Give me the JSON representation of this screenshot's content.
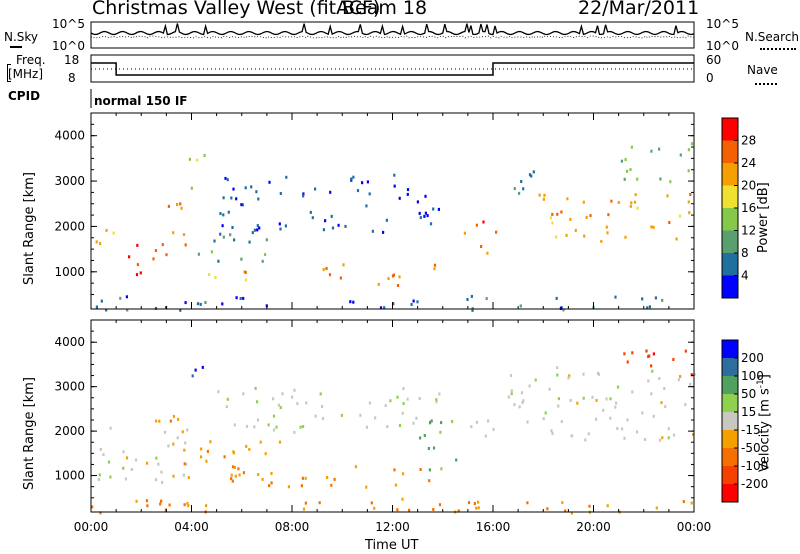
{
  "header": {
    "station": "Christmas Valley West (fitACF)",
    "beam": "Beam 18",
    "date": "22/Mar/2011"
  },
  "noise_panel": {
    "left_label": "N.Sky",
    "right_label": "N.Search",
    "left_ticks": [
      "10^5",
      "10^0"
    ],
    "right_ticks": [
      "10^5",
      "10^0"
    ]
  },
  "freq_panel": {
    "left_label_line1": "Freq.",
    "left_label_line2": "[MHz]",
    "right_label": "Nave",
    "left_ticks": [
      "18",
      "8"
    ],
    "right_ticks": [
      "60",
      "0"
    ]
  },
  "cpid_panel": {
    "label": "CPID",
    "mode": "normal 150 IF"
  },
  "colors": {
    "axis": "#000000",
    "ground_scatter": "#c0c0b8"
  },
  "chart_data": [
    {
      "type": "heatmap",
      "name": "power",
      "ylabel": "Slant Range [km]",
      "xlabel": "",
      "x_ticks": [
        "00:00",
        "04:00",
        "08:00",
        "12:00",
        "16:00",
        "20:00",
        "00:00"
      ],
      "xlim_hours": [
        0,
        24
      ],
      "ylim": [
        180,
        4500
      ],
      "y_ticks": [
        1000,
        2000,
        3000,
        4000
      ],
      "colorbar": {
        "label": "Power [dB]",
        "ticks": [
          4,
          8,
          12,
          16,
          20,
          24,
          28
        ],
        "range": [
          0,
          32
        ],
        "colors": [
          "#0000ff",
          "#1f6f9f",
          "#5aa06e",
          "#85c84a",
          "#f0e030",
          "#f5a000",
          "#f56000",
          "#ff0000"
        ]
      },
      "regions": [
        {
          "t": [
            0.0,
            0.9
          ],
          "r": [
            1450,
            2150
          ],
          "v": 20
        },
        {
          "t": [
            0.9,
            3.0
          ],
          "r": [
            900,
            1700
          ],
          "v": 28
        },
        {
          "t": [
            2.8,
            3.9
          ],
          "r": [
            1500,
            2600
          ],
          "v": 24
        },
        {
          "t": [
            3.8,
            4.5
          ],
          "r": [
            2800,
            3700
          ],
          "v": 16
        },
        {
          "t": [
            3.2,
            7.0
          ],
          "r": [
            1200,
            1500
          ],
          "v": 10
        },
        {
          "t": [
            3.0,
            6.5
          ],
          "r": [
            850,
            1100
          ],
          "v": 22
        },
        {
          "t": [
            4.8,
            7.5
          ],
          "r": [
            1600,
            2100
          ],
          "v": 8
        },
        {
          "t": [
            5.0,
            14.0
          ],
          "r": [
            1900,
            3200
          ],
          "v": 4
        },
        {
          "t": [
            9.0,
            13.8
          ],
          "r": [
            700,
            1200
          ],
          "v": 24
        },
        {
          "t": [
            14.8,
            16.2
          ],
          "r": [
            1400,
            2200
          ],
          "v": 26
        },
        {
          "t": [
            16.3,
            17.8
          ],
          "r": [
            2700,
            3500
          ],
          "v": 6
        },
        {
          "t": [
            17.8,
            24.0
          ],
          "r": [
            1700,
            2800
          ],
          "v": 22
        },
        {
          "t": [
            21.0,
            24.0
          ],
          "r": [
            3000,
            3900
          ],
          "v": 12
        },
        {
          "t": [
            0.0,
            24.0
          ],
          "r": [
            180,
            500
          ],
          "v": 6
        }
      ]
    },
    {
      "type": "heatmap",
      "name": "velocity",
      "ylabel": "Slant Range [km]",
      "xlabel": "Time UT",
      "x_ticks": [
        "00:00",
        "04:00",
        "08:00",
        "12:00",
        "16:00",
        "20:00",
        "00:00"
      ],
      "xlim_hours": [
        0,
        24
      ],
      "ylim": [
        180,
        4500
      ],
      "y_ticks": [
        1000,
        2000,
        3000,
        4000
      ],
      "colorbar": {
        "label": "Velocity [m s-1]",
        "ticks": [
          200,
          100,
          50,
          15,
          -15,
          -50,
          -100,
          -200
        ],
        "colors": [
          "#0000ff",
          "#2e6e9e",
          "#50a060",
          "#8fd050",
          "#c8c8c0",
          "#f5a000",
          "#f57000",
          "#f54000",
          "#ff0000"
        ]
      },
      "regions": [
        {
          "t": [
            0.0,
            3.8
          ],
          "r": [
            800,
            2100
          ],
          "v": 0
        },
        {
          "t": [
            2.5,
            3.8
          ],
          "r": [
            1700,
            2500
          ],
          "v": -40
        },
        {
          "t": [
            3.5,
            4.5
          ],
          "r": [
            3000,
            3600
          ],
          "v": 200
        },
        {
          "t": [
            3.0,
            6.5
          ],
          "r": [
            900,
            1300
          ],
          "v": -60
        },
        {
          "t": [
            3.2,
            7.5
          ],
          "r": [
            1300,
            1900
          ],
          "v": -40
        },
        {
          "t": [
            5.0,
            14.0
          ],
          "r": [
            2000,
            3000
          ],
          "v": 10
        },
        {
          "t": [
            5.5,
            13.8
          ],
          "r": [
            750,
            1250
          ],
          "v": -55
        },
        {
          "t": [
            13.0,
            14.6
          ],
          "r": [
            1000,
            2300
          ],
          "v": 60
        },
        {
          "t": [
            14.6,
            16.2
          ],
          "r": [
            1700,
            2300
          ],
          "v": 5
        },
        {
          "t": [
            16.5,
            24.0
          ],
          "r": [
            1800,
            3500
          ],
          "v": 0
        },
        {
          "t": [
            20.8,
            24.0
          ],
          "r": [
            3300,
            3900
          ],
          "v": -200
        },
        {
          "t": [
            0.0,
            24.0
          ],
          "r": [
            180,
            500
          ],
          "v": -50
        }
      ]
    }
  ]
}
